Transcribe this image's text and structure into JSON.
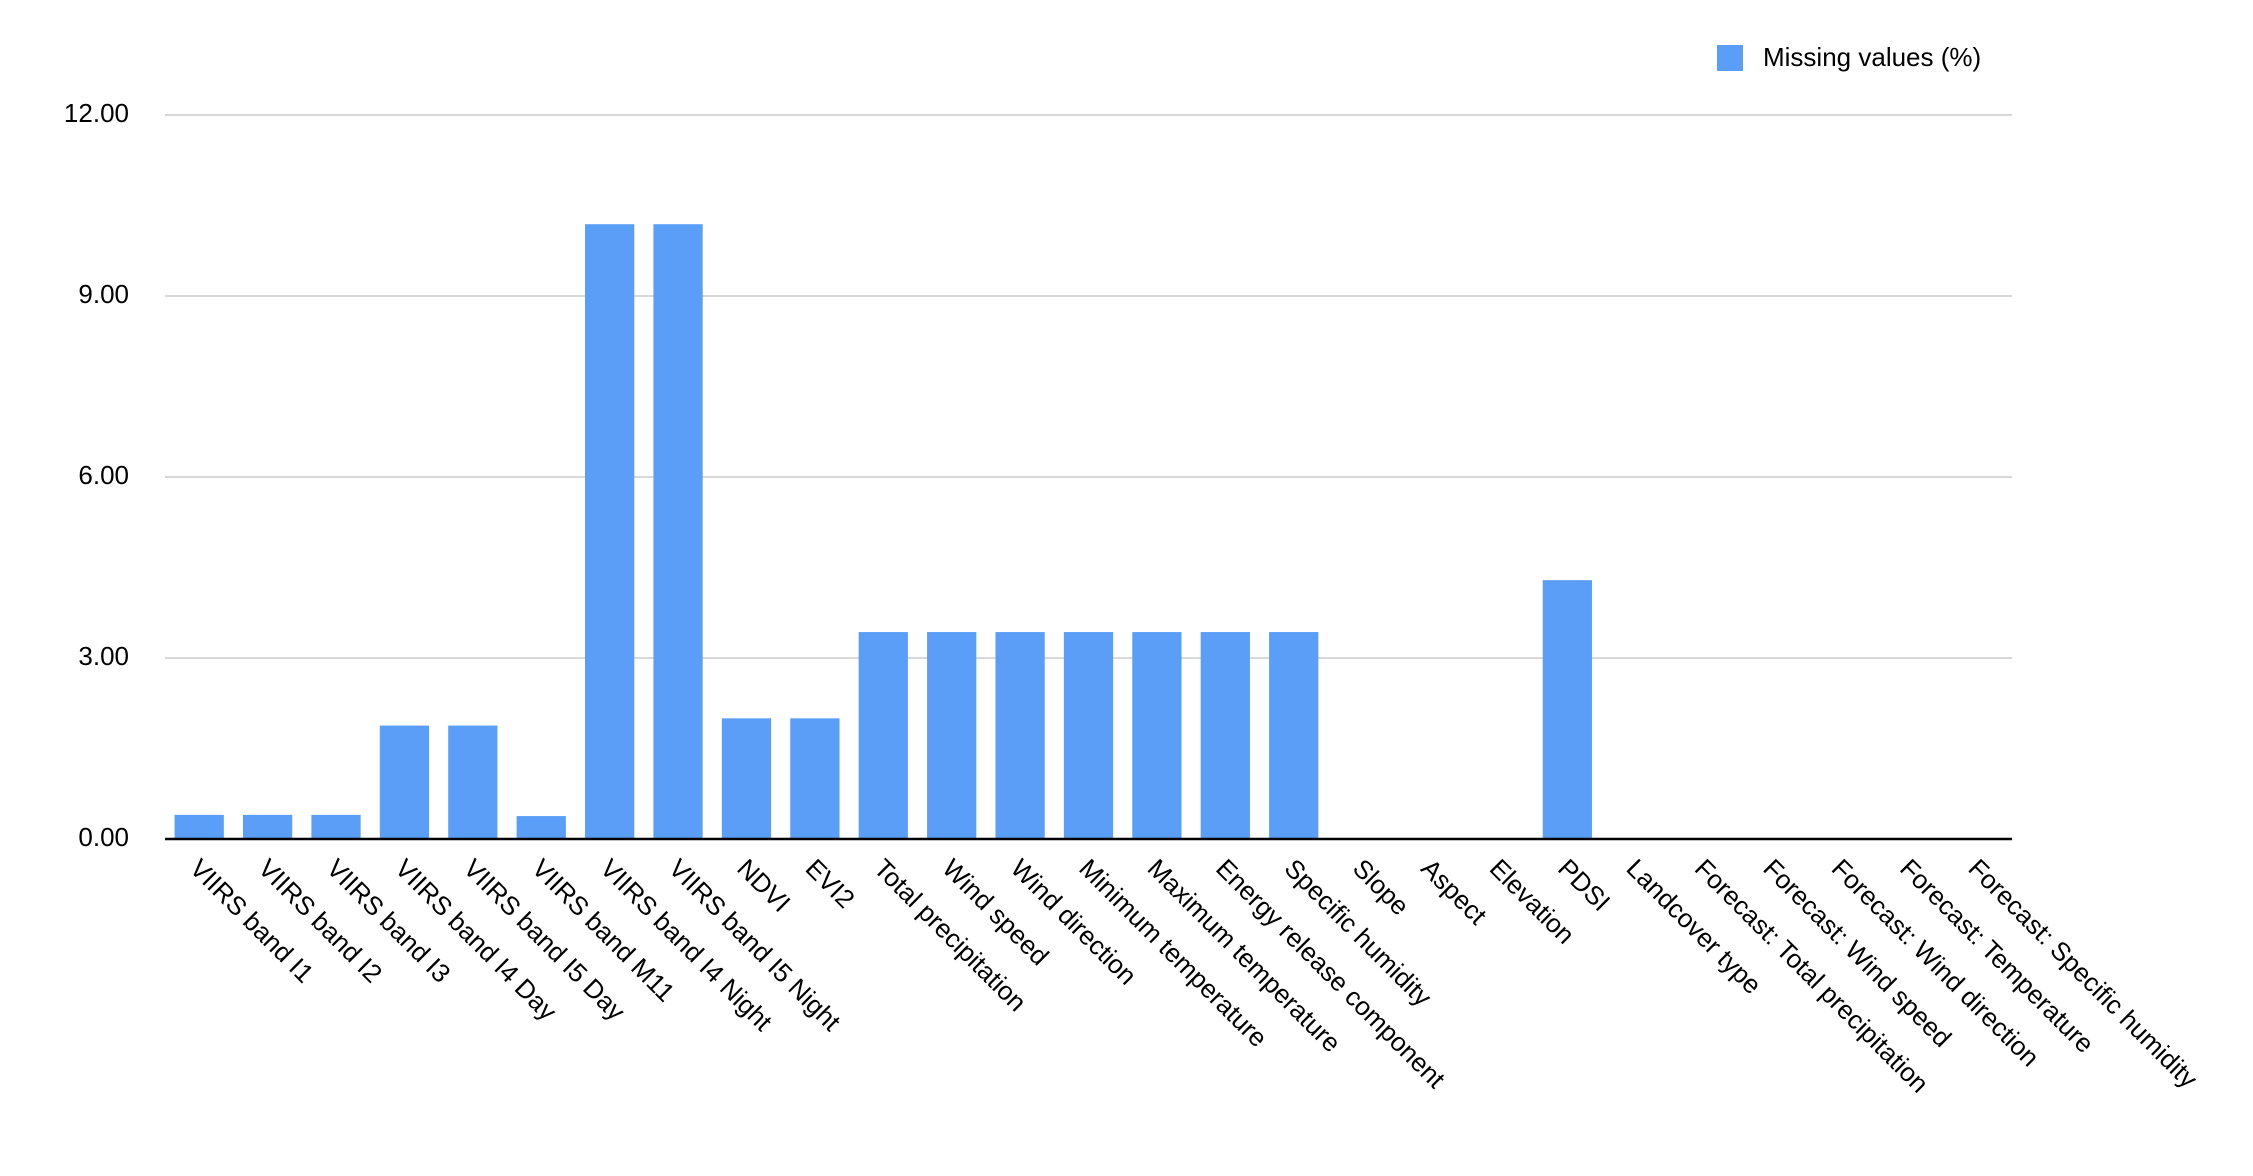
{
  "chart_data": {
    "type": "bar",
    "categories": [
      "VIIRS band I1",
      "VIIRS band I2",
      "VIIRS band I3",
      "VIIRS band I4 Day",
      "VIIRS band I5 Day",
      "VIIRS band M11",
      "VIIRS band I4 Night",
      "VIIRS band I5 Night",
      "NDVI",
      "EVI2",
      "Total precipitation",
      "Wind speed",
      "Wind direction",
      "Minimum temperature",
      "Maximum temperature",
      "Energy release component",
      "Specific humidity",
      "Slope",
      "Aspect",
      "Elevation",
      "PDSI",
      "Landcover type",
      "Forecast: Total precipitation",
      "Forecast: Wind speed",
      "Forecast: Wind direction",
      "Forecast: Temperature",
      "Forecast: Specific humidity"
    ],
    "series": [
      {
        "name": "Missing values (%)",
        "color": "#5a9ef8",
        "values": [
          0.4,
          0.4,
          0.4,
          1.88,
          1.88,
          0.38,
          10.19,
          10.19,
          2.0,
          2.0,
          3.43,
          3.43,
          3.43,
          3.43,
          3.43,
          3.43,
          3.43,
          0,
          0,
          0,
          4.29,
          0,
          0,
          0,
          0,
          0,
          0
        ]
      }
    ],
    "ylim": [
      0,
      12
    ],
    "yticks": [
      {
        "value": 0,
        "label": "0.00"
      },
      {
        "value": 3,
        "label": "3.00"
      },
      {
        "value": 6,
        "label": "6.00"
      },
      {
        "value": 9,
        "label": "9.00"
      },
      {
        "value": 12,
        "label": "12.00"
      }
    ],
    "grid": true,
    "legend": "top-right"
  }
}
